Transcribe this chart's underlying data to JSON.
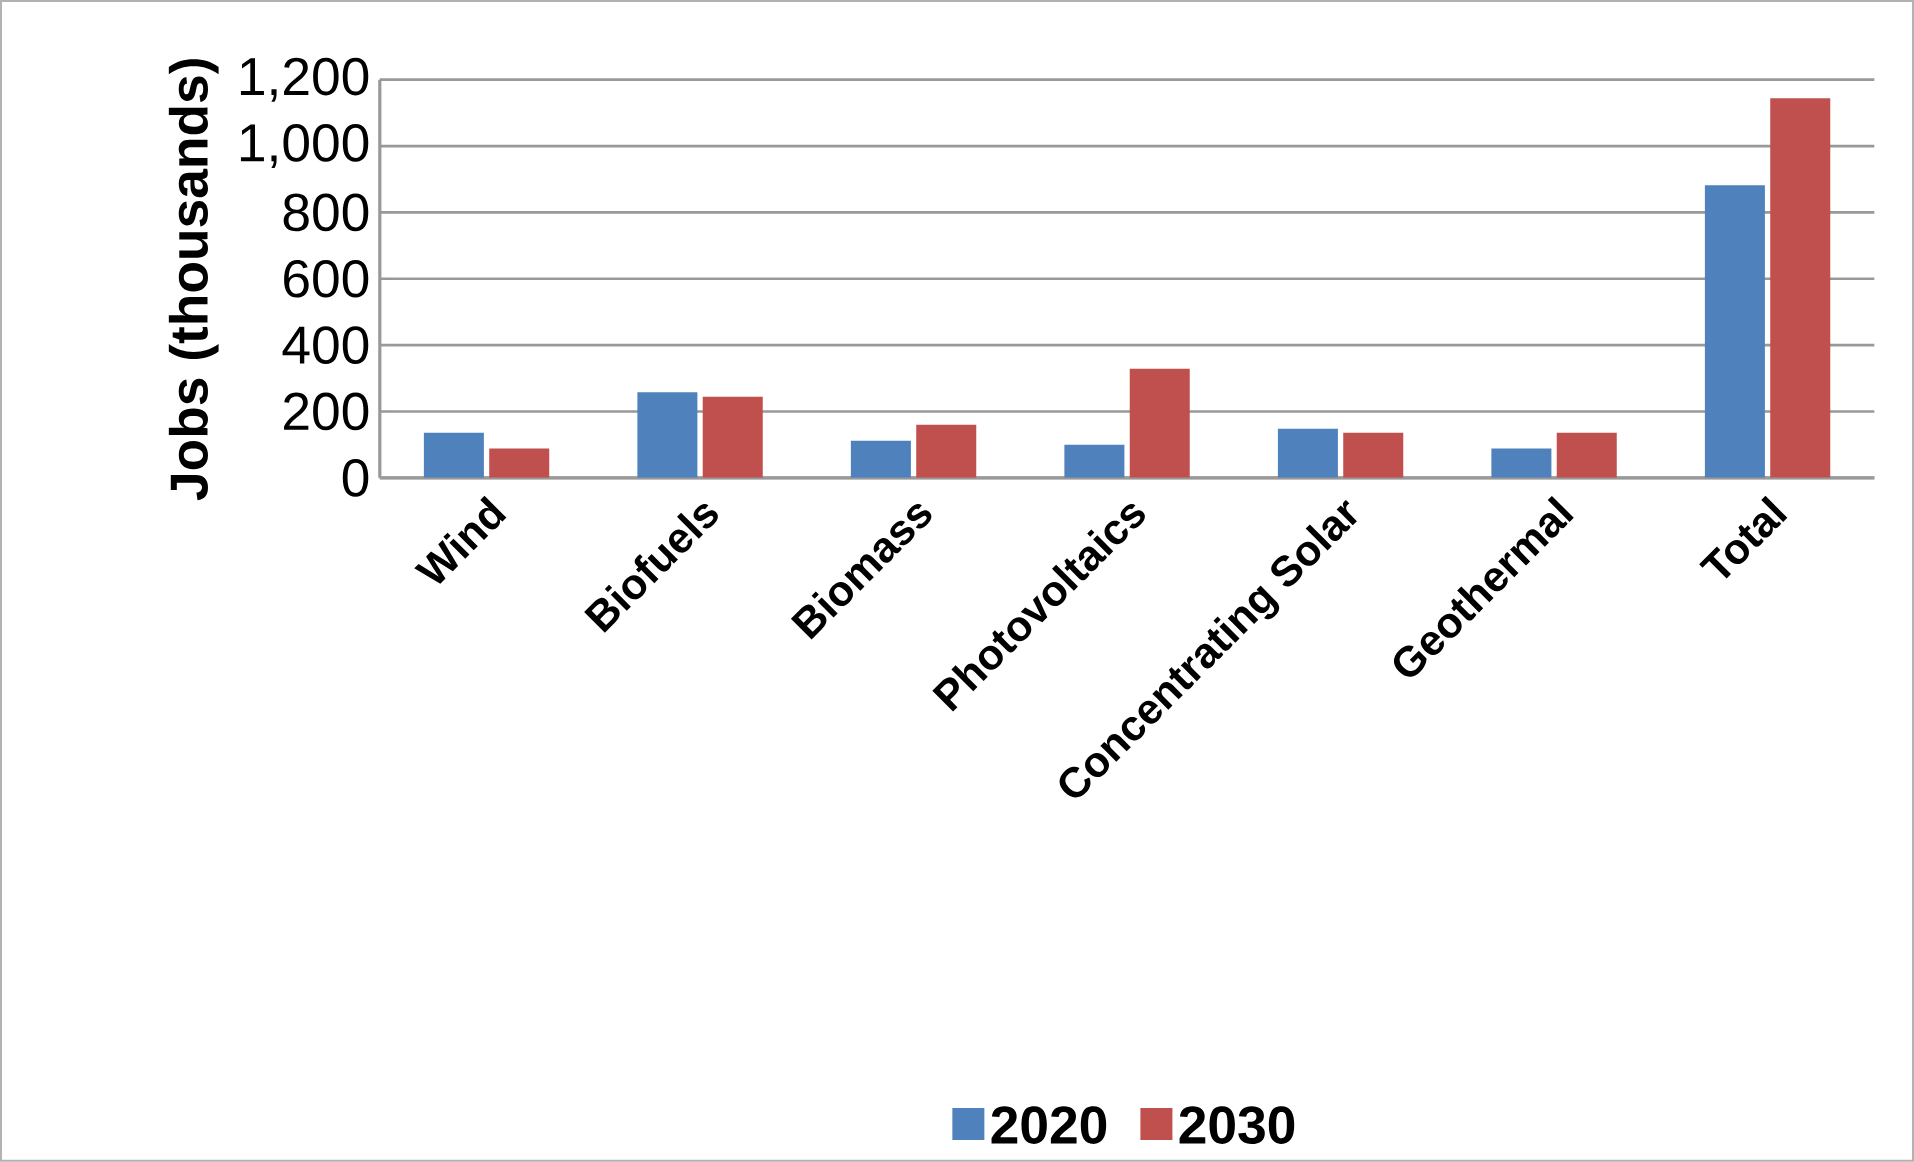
{
  "chart_data": {
    "type": "bar",
    "ylabel": "Jobs (thousands)",
    "categories": [
      "Wind",
      "Biofuels",
      "Biomass",
      "Photovoltaics",
      "Concentrating Solar",
      "Geothermal",
      "Total"
    ],
    "series": [
      {
        "name": "2020",
        "color": "#4f81bd",
        "values": [
          136,
          258,
          112,
          100,
          148,
          88,
          882
        ]
      },
      {
        "name": "2030",
        "color": "#c0504d",
        "values": [
          88,
          244,
          160,
          329,
          136,
          136,
          1144
        ]
      }
    ],
    "ylim": [
      0,
      1200
    ],
    "yticks": [
      {
        "value": 0,
        "label": "0"
      },
      {
        "value": 200,
        "label": "200"
      },
      {
        "value": 400,
        "label": "400"
      },
      {
        "value": 600,
        "label": "600"
      },
      {
        "value": 800,
        "label": "800"
      },
      {
        "value": 1000,
        "label": "1,000"
      },
      {
        "value": 1200,
        "label": "1,200"
      }
    ],
    "grid": "y",
    "legend": "bottom"
  }
}
